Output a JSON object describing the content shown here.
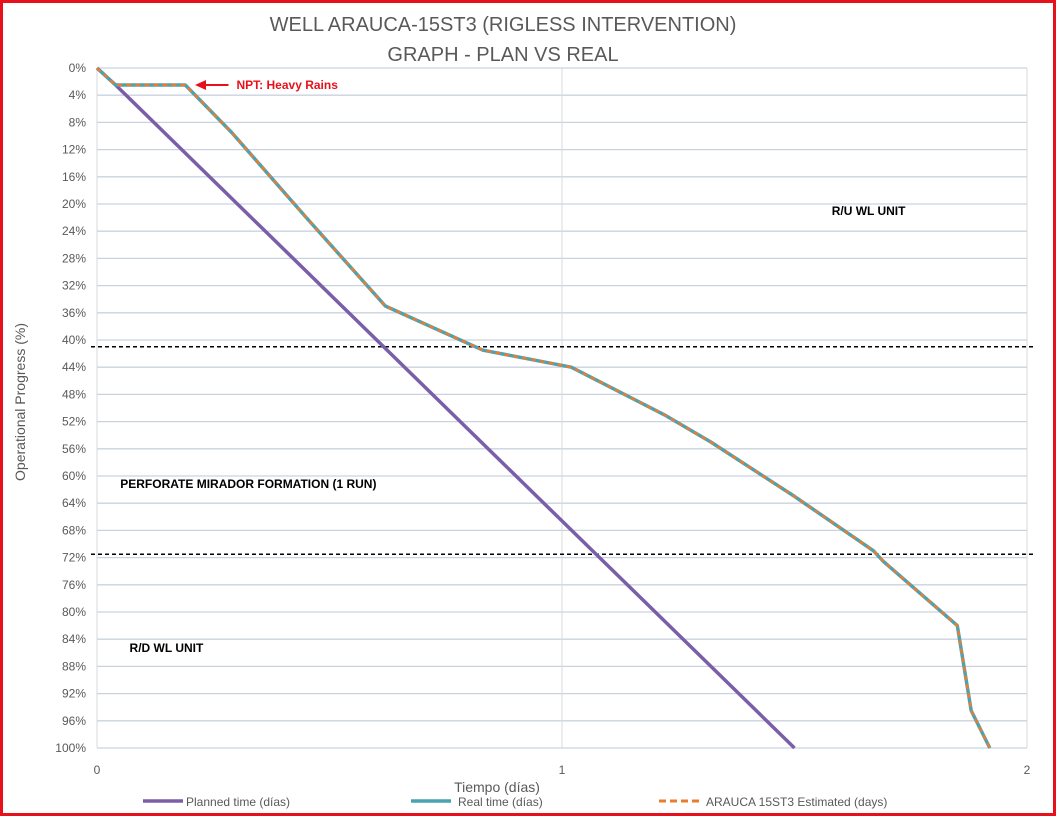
{
  "chart_data": {
    "type": "line",
    "title": "WELL ARAUCA-15ST3 (RIGLESS INTERVENTION)",
    "subtitle": "GRAPH  - PLAN VS REAL",
    "xlabel": "Tiempo (días)",
    "ylabel": "Operational Progress (%)",
    "xlim": [
      0,
      2
    ],
    "ylim": [
      0,
      100
    ],
    "y_reversed": true,
    "x_ticks": [
      "0",
      "1",
      "2"
    ],
    "y_ticks": [
      "0%",
      "4%",
      "8%",
      "12%",
      "16%",
      "20%",
      "24%",
      "28%",
      "32%",
      "36%",
      "40%",
      "44%",
      "48%",
      "52%",
      "56%",
      "60%",
      "64%",
      "68%",
      "72%",
      "76%",
      "80%",
      "84%",
      "88%",
      "92%",
      "96%",
      "100%"
    ],
    "grid": true,
    "legend_position": "bottom",
    "series": [
      {
        "name": "Planned time (días)",
        "color": "#7a5ea8",
        "style": "solid",
        "points": [
          [
            0,
            0
          ],
          [
            0.04,
            2.5
          ],
          [
            1.5,
            100
          ]
        ]
      },
      {
        "name": "Real time (días)",
        "color": "#4aa3b3",
        "style": "solid",
        "points": [
          [
            0,
            0
          ],
          [
            0.04,
            2.5
          ],
          [
            0.19,
            2.5
          ],
          [
            0.29,
            9.5
          ],
          [
            0.45,
            22
          ],
          [
            0.62,
            35
          ],
          [
            0.83,
            41.5
          ],
          [
            1.02,
            44
          ],
          [
            1.22,
            51
          ],
          [
            1.32,
            55
          ],
          [
            1.5,
            63
          ],
          [
            1.67,
            71
          ],
          [
            1.69,
            72.5
          ],
          [
            1.85,
            82
          ],
          [
            1.88,
            94.5
          ],
          [
            1.92,
            100
          ]
        ]
      },
      {
        "name": "ARAUCA 15ST3 Estimated (days)",
        "color": "#e87d32",
        "style": "dashed",
        "points": [
          [
            0,
            0
          ],
          [
            0.04,
            2.5
          ],
          [
            0.19,
            2.5
          ],
          [
            0.29,
            9.5
          ],
          [
            0.45,
            22
          ],
          [
            0.62,
            35
          ],
          [
            0.83,
            41.5
          ],
          [
            1.02,
            44
          ],
          [
            1.22,
            51
          ],
          [
            1.32,
            55
          ],
          [
            1.5,
            63
          ],
          [
            1.67,
            71
          ],
          [
            1.69,
            72.5
          ],
          [
            1.85,
            82
          ],
          [
            1.88,
            94.5
          ],
          [
            1.92,
            100
          ]
        ]
      }
    ],
    "reference_lines": [
      {
        "y": 41,
        "style": "dashed",
        "color": "#000000"
      },
      {
        "y": 71.5,
        "style": "dashed",
        "color": "#000000"
      }
    ],
    "annotations": [
      {
        "text": "NPT: Heavy Rains",
        "color": "#e8111b",
        "x": 0.3,
        "y": 2.5
      },
      {
        "text": "R/U WL UNIT",
        "color": "#000000",
        "x": 1.58,
        "y": 21
      },
      {
        "text": "PERFORATE MIRADOR FORMATION (1 RUN)",
        "color": "#000000",
        "x": 0.05,
        "y": 61.2
      },
      {
        "text": "R/D WL UNIT",
        "color": "#000000",
        "x": 0.07,
        "y": 85.3
      }
    ]
  }
}
